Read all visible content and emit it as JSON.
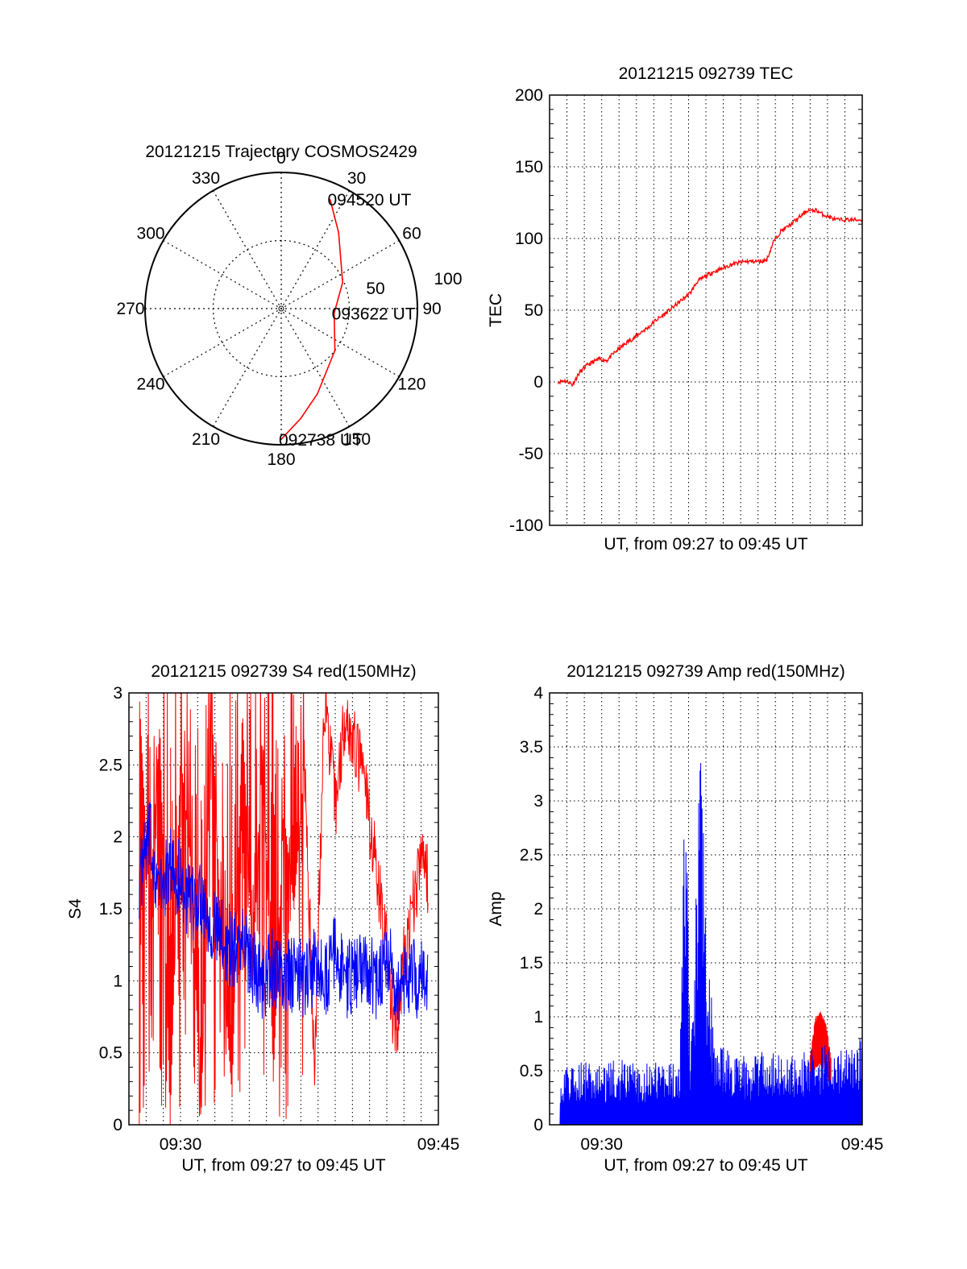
{
  "chart_data": [
    {
      "type": "polar",
      "title": "20121215 Trajectory COSMOS2429",
      "azimuth_ticks": [
        "0",
        "30",
        "60",
        "90",
        "120",
        "150",
        "180",
        "210",
        "240",
        "270",
        "300",
        "330"
      ],
      "radial_labels": [
        "50",
        "100"
      ],
      "trajectory": [
        {
          "az": 180,
          "el": 4
        },
        {
          "az": 170,
          "el": 18
        },
        {
          "az": 157,
          "el": 32
        },
        {
          "az": 128,
          "el": 50
        },
        {
          "az": 95,
          "el": 61
        },
        {
          "az": 67,
          "el": 51
        },
        {
          "az": 37,
          "el": 30
        },
        {
          "az": 24,
          "el": 12
        }
      ],
      "annotations": [
        {
          "text": "094520 UT",
          "az": 24,
          "el": 12
        },
        {
          "text": "093622 UT",
          "az": 95,
          "el": 61
        },
        {
          "text": "092738 UT",
          "az": 180,
          "el": 4
        }
      ],
      "colors": {
        "trajectory": "#ff0000"
      }
    },
    {
      "type": "line",
      "title": "20121215 092739 TEC",
      "ylabel": "TEC",
      "xlabel": "UT, from 09:27 to 09:45 UT",
      "xlim": [
        9.45,
        9.75
      ],
      "ylim": [
        -100,
        200
      ],
      "yticks": [
        -100,
        -50,
        0,
        50,
        100,
        150,
        200
      ],
      "grid": true,
      "series": [
        {
          "color": "#ff0000",
          "x": [
            9.4583,
            9.4633,
            9.4683,
            9.4717,
            9.4783,
            9.485,
            9.4917,
            9.4983,
            9.505,
            9.5117,
            9.5183,
            9.525,
            9.5317,
            9.5383,
            9.545,
            9.5517,
            9.5583,
            9.565,
            9.5717,
            9.5783,
            9.585,
            9.5917,
            9.5983,
            9.605,
            9.6117,
            9.6183,
            9.625,
            9.6317,
            9.6383,
            9.645,
            9.6517,
            9.6583,
            9.665,
            9.6717,
            9.6783,
            9.685,
            9.6917,
            9.6983,
            9.7017,
            9.705,
            9.7117,
            9.7183,
            9.725,
            9.7317,
            9.7383,
            9.745,
            9.75
          ],
          "values": [
            0,
            1,
            0,
            -2,
            6,
            11,
            14,
            16,
            15,
            20,
            24,
            28,
            31,
            35,
            38,
            43,
            46,
            50,
            54,
            58,
            62,
            70,
            73,
            76,
            78,
            80,
            82,
            83,
            84,
            84,
            84,
            85,
            98,
            105,
            108,
            112,
            116,
            120,
            119,
            120,
            117,
            115,
            113,
            113,
            113,
            113,
            113
          ]
        }
      ]
    },
    {
      "type": "line",
      "title": "20121215 092739 S4 red(150MHz)",
      "ylabel": "S4",
      "xlabel": "UT, from 09:27 to 09:45 UT",
      "xlim": [
        9.45,
        9.75
      ],
      "ylim": [
        0,
        3
      ],
      "yticks": [
        "0",
        "0.5",
        "1",
        "1.5",
        "2",
        "2.5",
        "3"
      ],
      "xticks": [
        {
          "x": 9.5,
          "label": "09:30"
        },
        {
          "x": 9.75,
          "label": "09:45"
        }
      ],
      "grid": true,
      "series": [
        {
          "color": "#ff0000",
          "x": [
            9.46,
            9.47,
            9.48,
            9.49,
            9.5,
            9.51,
            9.52,
            9.53,
            9.54,
            9.55,
            9.56,
            9.57,
            9.58,
            9.59,
            9.6,
            9.61,
            9.62,
            9.63,
            9.64,
            9.65,
            9.66,
            9.665,
            9.67,
            9.675,
            9.68,
            9.685,
            9.69,
            9.695,
            9.7,
            9.705,
            9.71,
            9.715,
            9.72,
            9.725,
            9.73,
            9.735,
            9.74
          ],
          "values": [
            3.0,
            1.5,
            2.8,
            0.0,
            2.6,
            1.8,
            0.0,
            3.0,
            1.2,
            0.2,
            2.9,
            1.0,
            2.7,
            0.3,
            2.2,
            1.5,
            2.5,
            0.4,
            3.0,
            2.2,
            2.9,
            2.7,
            2.6,
            2.5,
            2.3,
            2.0,
            1.8,
            1.5,
            1.2,
            0.8,
            0.6,
            1.1,
            1.2,
            1.5,
            1.7,
            1.9,
            1.7
          ]
        },
        {
          "color": "#0000ff",
          "x": [
            9.46,
            9.47,
            9.48,
            9.49,
            9.5,
            9.51,
            9.52,
            9.53,
            9.54,
            9.55,
            9.56,
            9.57,
            9.58,
            9.59,
            9.6,
            9.61,
            9.62,
            9.63,
            9.64,
            9.65,
            9.66,
            9.67,
            9.68,
            9.69,
            9.7,
            9.71,
            9.72,
            9.73,
            9.74
          ],
          "values": [
            1.7,
            2.0,
            1.6,
            1.8,
            1.7,
            1.5,
            1.6,
            1.4,
            1.3,
            1.2,
            1.3,
            1.1,
            1.0,
            1.1,
            1.0,
            1.05,
            1.0,
            1.1,
            1.0,
            1.2,
            1.0,
            1.05,
            1.1,
            1.0,
            1.2,
            0.9,
            1.05,
            1.0,
            1.05
          ]
        }
      ]
    },
    {
      "type": "line",
      "title": "20121215 092739 Amp red(150MHz)",
      "ylabel": "Amp",
      "xlabel": "UT, from 09:27 to 09:45 UT",
      "xlim": [
        9.45,
        9.75
      ],
      "ylim": [
        0,
        4
      ],
      "yticks": [
        "0",
        "0.5",
        "1",
        "1.5",
        "2",
        "2.5",
        "3",
        "3.5",
        "4"
      ],
      "xticks": [
        {
          "x": 9.5,
          "label": "09:30"
        },
        {
          "x": 9.75,
          "label": "09:45"
        }
      ],
      "grid": true,
      "series": [
        {
          "color": "#ff0000",
          "x": [
            9.7,
            9.705,
            9.71,
            9.715,
            9.72
          ],
          "values": [
            0.6,
            0.95,
            1.0,
            0.9,
            0.6
          ]
        },
        {
          "color": "#0000ff",
          "x": [
            9.46,
            9.48,
            9.5,
            9.52,
            9.54,
            9.56,
            9.575,
            9.58,
            9.585,
            9.59,
            9.595,
            9.6,
            9.605,
            9.61,
            9.62,
            9.64,
            9.66,
            9.68,
            9.7,
            9.72,
            9.74,
            9.75
          ],
          "values": [
            0.4,
            0.45,
            0.4,
            0.45,
            0.4,
            0.45,
            0.5,
            2.7,
            0.5,
            1.4,
            2.7,
            1.3,
            1.0,
            0.6,
            0.5,
            0.45,
            0.5,
            0.45,
            0.5,
            0.55,
            0.5,
            0.6
          ]
        }
      ]
    }
  ]
}
